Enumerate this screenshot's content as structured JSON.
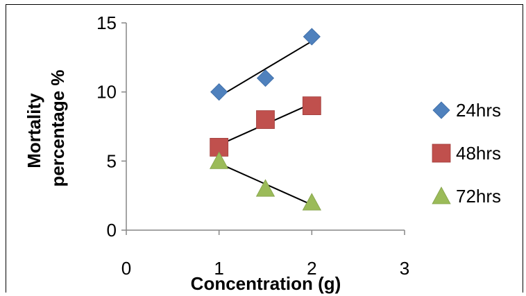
{
  "chart_data": {
    "type": "scatter",
    "title": "",
    "xlabel": "Concentration (g)",
    "ylabel_lines": [
      "Mortality",
      "percentage %"
    ],
    "xlim": [
      0,
      3
    ],
    "ylim": [
      0,
      15
    ],
    "x_ticks": [
      "0",
      "1",
      "2",
      "3"
    ],
    "y_ticks": [
      "0",
      "5",
      "10",
      "15"
    ],
    "grid": false,
    "legend_position": "right",
    "trendlines": true,
    "series": [
      {
        "name": "24hrs",
        "marker": "diamond",
        "color": "#4F81BD",
        "x": [
          1,
          1.5,
          2
        ],
        "y": [
          10,
          11,
          14
        ]
      },
      {
        "name": "48hrs",
        "marker": "square",
        "color": "#C0504D",
        "x": [
          1,
          1.5,
          2
        ],
        "y": [
          6,
          8,
          9
        ]
      },
      {
        "name": "72hrs",
        "marker": "triangle",
        "color": "#9BBB59",
        "x": [
          1,
          1.5,
          2
        ],
        "y": [
          5,
          3,
          2
        ]
      }
    ]
  }
}
